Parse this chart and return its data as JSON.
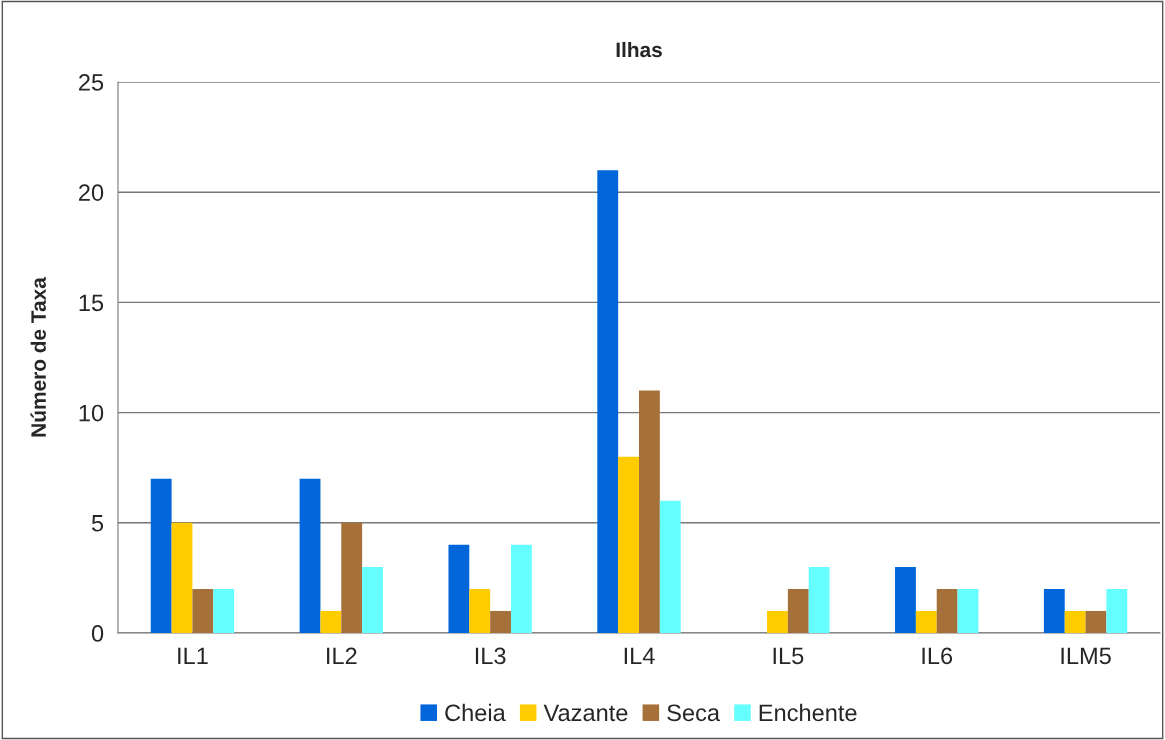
{
  "chart_data": {
    "type": "bar",
    "title": "Ilhas",
    "ylabel": "Número de Taxa",
    "categories": [
      "IL1",
      "IL2",
      "IL3",
      "IL4",
      "IL5",
      "IL6",
      "ILM5"
    ],
    "series": [
      {
        "name": "Cheia",
        "color": "#0066d9",
        "values": [
          7,
          7,
          4,
          21,
          null,
          3,
          2
        ]
      },
      {
        "name": "Vazante",
        "color": "#ffcc00",
        "values": [
          5,
          1,
          2,
          8,
          1,
          1,
          1
        ]
      },
      {
        "name": "Seca",
        "color": "#a5703a",
        "values": [
          2,
          5,
          1,
          11,
          2,
          2,
          1
        ]
      },
      {
        "name": "Enchente",
        "color": "#66ffff",
        "values": [
          2,
          3,
          4,
          6,
          3,
          2,
          2
        ]
      }
    ],
    "ylim": [
      0,
      25
    ],
    "yticks": [
      0,
      5,
      10,
      15,
      20,
      25
    ],
    "grid": "y",
    "legend": "bottom"
  }
}
